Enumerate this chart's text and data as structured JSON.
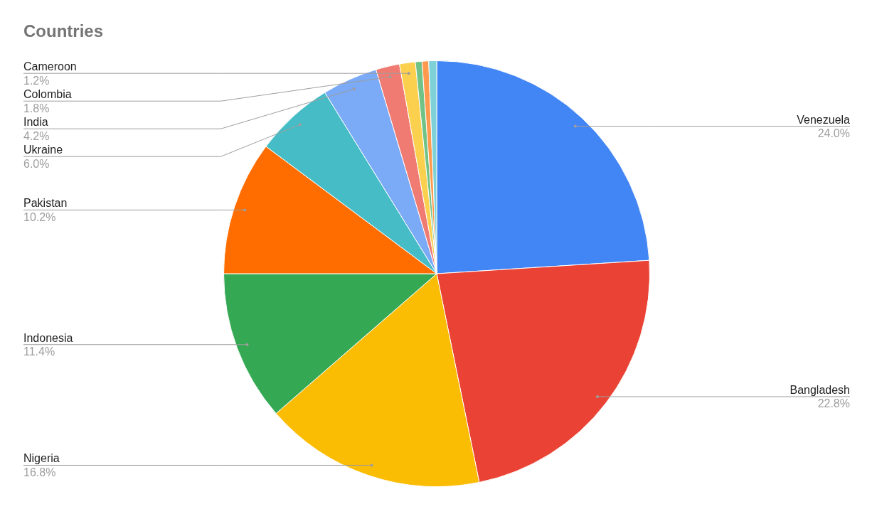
{
  "chart_data": {
    "type": "pie",
    "title": "Countries",
    "categories": [
      "Venezuela",
      "Bangladesh",
      "Nigeria",
      "Indonesia",
      "Pakistan",
      "Ukraine",
      "India",
      "Colombia",
      "Cameroon",
      null,
      null,
      null
    ],
    "values": [
      24.0,
      22.8,
      16.8,
      11.4,
      10.2,
      6.0,
      4.2,
      1.8,
      1.2,
      0.5,
      0.5,
      0.6
    ],
    "value_labels": [
      "24.0%",
      "22.8%",
      "16.8%",
      "11.4%",
      "10.2%",
      "6.0%",
      "4.2%",
      "1.8%",
      "1.2%",
      null,
      null,
      null
    ],
    "colors": [
      "#4285f4",
      "#ea4335",
      "#fbbc04",
      "#34a853",
      "#ff6d01",
      "#46bdc6",
      "#7baaf7",
      "#f07b72",
      "#fcd04f",
      "#71c287",
      "#ff994d",
      "#7ed1d7"
    ],
    "legend": false
  }
}
